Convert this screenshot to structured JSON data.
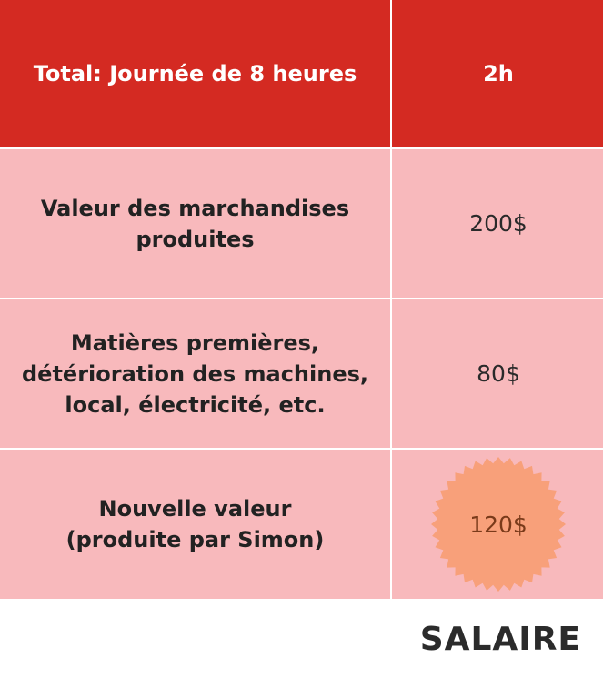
{
  "table": {
    "header": {
      "label": "Total: Journée de 8 heures",
      "value": "2h"
    },
    "rows": [
      {
        "label": "Valeur des marchandises\nproduites",
        "value": "200$"
      },
      {
        "label": "Matières premières,\ndétérioration des machines,\nlocal, électricité, etc.",
        "value": "80$"
      },
      {
        "label": "Nouvelle valeur\n(produite par Simon)",
        "value": "120$"
      }
    ]
  },
  "annotation": {
    "text": "SALAIRE"
  },
  "colors": {
    "header_bg": "#d42a22",
    "row_bg": "#f8b9bc",
    "burst": "#f8a07a"
  }
}
